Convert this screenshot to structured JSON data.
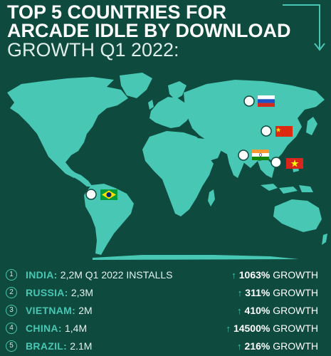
{
  "title": {
    "line1": "TOP 5 COUNTRIES FOR",
    "line2": "ARCADE IDLE BY DOWNLOAD",
    "line3": "GROWTH Q1 2022:"
  },
  "colors": {
    "background": "#0e4a3d",
    "land": "#47c7b4",
    "accent": "#47c7b4",
    "text": "#ffffff"
  },
  "map": {
    "markers": [
      {
        "country": "India",
        "flag": "india-flag"
      },
      {
        "country": "Russia",
        "flag": "russia-flag"
      },
      {
        "country": "Vietnam",
        "flag": "vietnam-flag"
      },
      {
        "country": "China",
        "flag": "china-flag"
      },
      {
        "country": "Brazil",
        "flag": "brazil-flag"
      }
    ]
  },
  "rankings": [
    {
      "rank": "1",
      "country": "INDIA:",
      "detail": "2,2M  Q1 2022 INSTALLS",
      "growth": "1063%",
      "growth_label": "GROWTH"
    },
    {
      "rank": "2",
      "country": "RUSSIA:",
      "detail": "2,3M",
      "growth": "311%",
      "growth_label": "GROWTH"
    },
    {
      "rank": "3",
      "country": "VIETNAM:",
      "detail": "2M",
      "growth": "410%",
      "growth_label": "GROWTH"
    },
    {
      "rank": "4",
      "country": "CHINA:",
      "detail": "1,4M",
      "growth": "14500%",
      "growth_label": "GROWTH"
    },
    {
      "rank": "5",
      "country": "BRAZIL:",
      "detail": "2.1M",
      "growth": "216%",
      "growth_label": "GROWTH"
    }
  ]
}
